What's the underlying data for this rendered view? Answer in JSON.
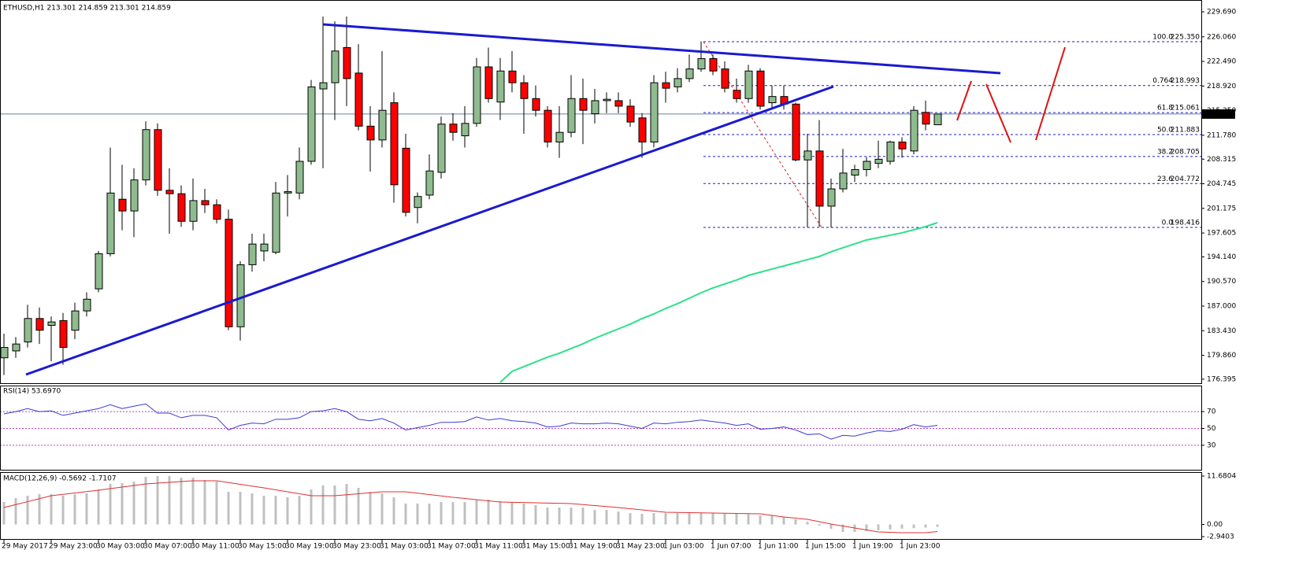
{
  "chart_data": [
    {
      "type": "candlestick",
      "title": "ETHUSD,H1  213.301 214.859 213.301 214.859",
      "categories": [
        "29 May 2017",
        null,
        null,
        null,
        "29 May 23:00",
        null,
        null,
        null,
        "30 May 03:00",
        null,
        null,
        null,
        "30 May 07:00",
        null,
        null,
        null,
        "30 May 11:00",
        null,
        null,
        null,
        "30 May 15:00",
        null,
        null,
        null,
        "30 May 19:00",
        null,
        null,
        null,
        "30 May 23:00",
        null,
        null,
        null,
        "31 May 03:00",
        null,
        null,
        null,
        "31 May 07:00",
        null,
        null,
        null,
        "31 May 11:00",
        null,
        null,
        null,
        "31 May 15:00",
        null,
        null,
        null,
        "31 May 19:00",
        null,
        null,
        null,
        "31 May 23:00",
        null,
        null,
        null,
        "1 Jun 03:00",
        null,
        null,
        null,
        "1 Jun 07:00",
        null,
        null,
        null,
        "1 Jun 11:00",
        null,
        null,
        null,
        "1 Jun 15:00",
        null,
        null,
        null,
        "1 Jun 19:00",
        null,
        null,
        null,
        "1 Jun 23:00",
        null,
        null,
        null
      ],
      "open": [
        179.5,
        180.5,
        181.8,
        185.2,
        184.2,
        184.9,
        183.5,
        186.3,
        189.5,
        194.6,
        202.5,
        200.8,
        205.3,
        212.6,
        203.8,
        203.3,
        199.3,
        202.3,
        201.7,
        199.6,
        184.0,
        193.0,
        195.0,
        194.8,
        203.4,
        203.4,
        208.0,
        218.5,
        219.4,
        224.5,
        220.8,
        213.1,
        211.1,
        216.5,
        209.9,
        201.3,
        203.1,
        206.4,
        213.4,
        211.7,
        213.5,
        221.7,
        216.6,
        221.1,
        219.4,
        217.1,
        215.4,
        210.8,
        212.2,
        217.1,
        214.9,
        216.8,
        216.8,
        216.0,
        214.3,
        210.8,
        219.4,
        218.8,
        220.0,
        221.4,
        222.9,
        221.4,
        218.3,
        217.1,
        221.1,
        216.5,
        217.4,
        216.3,
        208.2,
        209.5,
        201.5,
        204.0,
        206.0,
        206.8,
        207.7,
        208.0,
        210.8,
        209.5,
        215.1,
        213.301
      ],
      "high": [
        183.0,
        182.5,
        187.2,
        186.8,
        185.5,
        186.0,
        187.5,
        189.0,
        195.0,
        210.0,
        207.5,
        207.0,
        213.8,
        213.5,
        207.0,
        204.5,
        205.5,
        204.0,
        202.5,
        201.0,
        193.5,
        197.5,
        197.5,
        205.0,
        206.0,
        210.0,
        219.8,
        229.0,
        228.3,
        229.0,
        225.0,
        216.0,
        224.0,
        218.0,
        212.0,
        203.5,
        209.0,
        214.5,
        215.0,
        216.0,
        223.0,
        224.5,
        223.0,
        224.0,
        220.5,
        219.0,
        216.0,
        216.0,
        220.5,
        220.0,
        218.5,
        218.0,
        218.0,
        217.0,
        215.0,
        220.5,
        221.0,
        221.5,
        223.5,
        225.4,
        223.5,
        222.5,
        220.0,
        222.0,
        221.5,
        219.0,
        219.0,
        216.5,
        212.0,
        214.0,
        205.5,
        209.8,
        207.5,
        208.6,
        211.0,
        211.0,
        211.5,
        216.0,
        216.8,
        214.859
      ],
      "low": [
        177.0,
        179.5,
        181.0,
        181.5,
        179.0,
        178.5,
        182.2,
        185.5,
        189.0,
        194.2,
        198.0,
        197.0,
        204.5,
        203.0,
        197.5,
        198.5,
        198.0,
        200.5,
        199.0,
        183.5,
        182.0,
        192.0,
        193.5,
        194.5,
        200.0,
        202.5,
        207.5,
        207.0,
        214.0,
        216.0,
        212.5,
        206.5,
        210.0,
        202.0,
        200.0,
        199.0,
        202.5,
        205.5,
        211.0,
        210.0,
        213.0,
        216.5,
        214.0,
        218.0,
        212.0,
        214.5,
        210.0,
        208.5,
        211.5,
        210.5,
        213.5,
        215.0,
        215.0,
        213.0,
        208.5,
        210.0,
        216.5,
        218.0,
        219.5,
        221.0,
        220.5,
        218.0,
        216.5,
        216.5,
        215.5,
        215.5,
        215.5,
        208.0,
        198.4,
        198.5,
        198.4,
        203.5,
        205.0,
        205.8,
        207.0,
        207.5,
        208.5,
        209.0,
        212.5,
        213.301
      ],
      "close": [
        181.0,
        181.5,
        185.2,
        183.5,
        184.7,
        181.0,
        186.3,
        188.0,
        194.6,
        203.4,
        200.8,
        205.3,
        212.6,
        203.8,
        203.3,
        199.3,
        202.3,
        201.7,
        199.6,
        184.0,
        193.0,
        196.0,
        196.0,
        203.4,
        203.6,
        208.0,
        218.8,
        219.4,
        224.0,
        220.0,
        213.1,
        211.1,
        215.4,
        204.6,
        200.6,
        202.9,
        206.6,
        213.4,
        212.2,
        213.5,
        221.7,
        217.1,
        221.1,
        219.4,
        217.1,
        215.4,
        210.8,
        212.2,
        217.1,
        215.4,
        216.8,
        217.0,
        216.0,
        213.7,
        210.8,
        219.4,
        218.6,
        220.0,
        221.4,
        222.9,
        221.1,
        218.6,
        217.1,
        221.1,
        216.0,
        217.4,
        216.3,
        208.2,
        209.5,
        201.5,
        204.0,
        206.3,
        206.8,
        208.0,
        208.3,
        210.8,
        209.8,
        215.4,
        213.4,
        214.859
      ],
      "up_color": "#8fbc8f",
      "down_color": "#ff0000",
      "ylim": [
        175.7,
        230.83
      ],
      "yticks": [
        {
          "value": 229.69,
          "label": "229.690"
        },
        {
          "value": 226.06,
          "label": "226.060"
        },
        {
          "value": 222.49,
          "label": "222.490"
        },
        {
          "value": 218.92,
          "label": "218.920"
        },
        {
          "value": 215.35,
          "label": "215.350"
        },
        {
          "value": 211.78,
          "label": "211.780"
        },
        {
          "value": 208.315,
          "label": "208.315"
        },
        {
          "value": 204.745,
          "label": "204.745"
        },
        {
          "value": 201.175,
          "label": "201.175"
        },
        {
          "value": 197.605,
          "label": "197.605"
        },
        {
          "value": 194.14,
          "label": "194.140"
        },
        {
          "value": 190.57,
          "label": "190.570"
        },
        {
          "value": 187.0,
          "label": "187.000"
        },
        {
          "value": 183.43,
          "label": "183.430"
        },
        {
          "value": 179.86,
          "label": "179.860"
        },
        {
          "value": 176.395,
          "label": "176.395"
        }
      ],
      "moving_average": {
        "color": "#2ee08c",
        "values": [
          null,
          null,
          null,
          null,
          null,
          null,
          null,
          null,
          null,
          null,
          null,
          null,
          null,
          null,
          null,
          null,
          null,
          null,
          null,
          null,
          null,
          null,
          null,
          null,
          null,
          null,
          null,
          null,
          null,
          null,
          null,
          null,
          null,
          null,
          null,
          null,
          null,
          null,
          null,
          null,
          null,
          null,
          175.93,
          177.53,
          178.22,
          178.9,
          179.59,
          180.16,
          180.84,
          181.53,
          182.32,
          183.01,
          183.69,
          184.38,
          185.18,
          185.86,
          186.66,
          187.35,
          188.14,
          188.94,
          189.63,
          190.2,
          190.77,
          191.45,
          191.91,
          192.37,
          192.82,
          193.28,
          193.74,
          194.19,
          194.88,
          195.45,
          196.02,
          196.59,
          196.93,
          197.28,
          197.62,
          198.07,
          198.53,
          199.1
        ]
      },
      "current_price": 214.859,
      "fibonacci": {
        "color": "#1c1cc8",
        "names": [
          "100.0",
          "0.764",
          "61.8",
          "50.0",
          "38.2",
          "23.6",
          "0.0"
        ],
        "values": [
          225.35,
          218.993,
          215.061,
          211.883,
          208.705,
          204.772,
          198.416
        ],
        "value_labels": [
          "225.350",
          "218.993",
          "215.061",
          "211.883",
          "208.705",
          "204.772",
          "198.416"
        ]
      }
    },
    {
      "type": "line",
      "title": "RSI(14) 53.6970",
      "color": "#3b3bd1",
      "level_color": "#c040c0",
      "ylim": [
        0,
        100
      ],
      "yticks": [
        70,
        50,
        30
      ],
      "values": [
        67.3,
        70.0,
        73.6,
        70.0,
        70.9,
        65.5,
        68.2,
        70.9,
        73.6,
        78.2,
        73.6,
        76.4,
        79.1,
        68.2,
        68.2,
        62.7,
        65.5,
        65.5,
        62.7,
        48.2,
        53.6,
        56.4,
        55.5,
        60.9,
        60.9,
        62.7,
        70.0,
        70.9,
        73.6,
        70.0,
        60.9,
        59.1,
        61.8,
        56.4,
        48.2,
        50.9,
        53.6,
        57.3,
        57.3,
        58.2,
        63.6,
        60.0,
        61.8,
        59.1,
        58.2,
        56.4,
        51.8,
        52.7,
        56.4,
        55.5,
        55.5,
        56.4,
        55.5,
        52.7,
        50.0,
        56.4,
        55.5,
        57.3,
        58.2,
        60.0,
        58.2,
        56.4,
        53.6,
        55.5,
        49.1,
        50.0,
        51.8,
        48.2,
        42.7,
        43.6,
        37.3,
        41.8,
        40.9,
        44.5,
        47.3,
        46.4,
        49.1,
        54.5,
        51.8,
        53.697
      ]
    },
    {
      "type": "macd",
      "title": "MACD(12,26,9) -0.5692 -1.7107",
      "ylim": [
        -2.9403,
        11.6804
      ],
      "yticks": [
        11.6804,
        {
          "value": 0,
          "label": "0.00"
        },
        -2.9403
      ],
      "histogram": {
        "color": "#c0c0c0",
        "values": [
          5.41,
          6.36,
          6.93,
          7.31,
          7.31,
          6.93,
          7.31,
          7.5,
          8.45,
          9.78,
          9.97,
          10.35,
          11.49,
          11.68,
          11.68,
          11.3,
          11.3,
          10.73,
          10.35,
          7.88,
          7.88,
          7.5,
          6.93,
          6.93,
          6.55,
          6.93,
          8.45,
          9.4,
          9.4,
          9.78,
          8.83,
          7.88,
          7.5,
          6.55,
          5.03,
          5.03,
          5.03,
          5.41,
          5.41,
          5.41,
          5.98,
          5.98,
          5.6,
          5.41,
          5.03,
          4.65,
          4.08,
          4.08,
          4.08,
          4.08,
          3.51,
          3.51,
          3.13,
          2.75,
          2.56,
          2.75,
          2.75,
          2.75,
          2.75,
          2.75,
          2.75,
          2.75,
          2.56,
          2.56,
          2.18,
          2.18,
          1.8,
          1.23,
          0.66,
          -0.28,
          -1.04,
          -1.8,
          -1.8,
          -1.6,
          -1.4,
          -1.2,
          -1.0,
          -0.9,
          -0.75,
          -0.5692
        ]
      },
      "signal": {
        "color": "#e03030",
        "values": [
          4.08,
          4.79,
          5.5,
          6.22,
          6.93,
          7.26,
          7.6,
          7.93,
          8.26,
          8.64,
          9.02,
          9.4,
          9.78,
          9.97,
          10.16,
          10.35,
          10.54,
          10.54,
          10.54,
          10.11,
          9.69,
          9.26,
          8.83,
          8.36,
          7.88,
          7.41,
          6.93,
          6.93,
          6.93,
          7.17,
          7.4,
          7.64,
          7.88,
          7.88,
          7.88,
          7.55,
          7.21,
          6.88,
          6.55,
          6.27,
          5.98,
          5.69,
          5.41,
          5.35,
          5.29,
          5.22,
          5.16,
          5.1,
          5.03,
          4.79,
          4.56,
          4.32,
          4.08,
          3.8,
          3.51,
          3.23,
          2.94,
          2.89,
          2.85,
          2.8,
          2.75,
          2.7,
          2.66,
          2.61,
          2.56,
          2.18,
          1.8,
          1.52,
          1.23,
          0.66,
          0.09,
          -0.38,
          -0.85,
          -1.33,
          -1.8,
          -1.9,
          -1.99,
          -1.99,
          -1.99,
          -1.7107
        ]
      }
    }
  ]
}
